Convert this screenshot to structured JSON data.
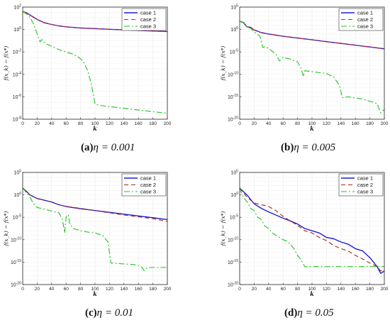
{
  "chart_data": [
    {
      "type": "line",
      "panel": "a",
      "caption": {
        "letter": "(a)",
        "text": "η = 0.001"
      },
      "xlabel": "k",
      "ylabel": "f(x_k) − f(x*)",
      "xlim": [
        0,
        200
      ],
      "xticks": [
        0,
        20,
        40,
        60,
        80,
        100,
        120,
        140,
        160,
        180,
        200
      ],
      "yscale": "log",
      "ylim_exp": [
        -8,
        2
      ],
      "yticks": [
        "10^2",
        "10^0",
        "10^-2",
        "10^-4",
        "10^-6",
        "10^-8"
      ],
      "ytick_exps": [
        2,
        0,
        -2,
        -4,
        -6,
        -8
      ],
      "grid": true,
      "legend": "top-right",
      "series": [
        {
          "name": "case 1",
          "color": "#1f1fd6",
          "dash": "solid",
          "x": [
            0,
            5,
            10,
            20,
            30,
            40,
            50,
            60,
            80,
            100,
            120,
            140,
            160,
            180,
            200
          ],
          "y_exp": [
            1.6,
            1.5,
            1.3,
            0.9,
            0.6,
            0.45,
            0.32,
            0.24,
            0.14,
            0.08,
            0.02,
            -0.03,
            -0.08,
            -0.13,
            -0.18
          ]
        },
        {
          "name": "case 2",
          "color": "#d81e1e",
          "dash": "6,4",
          "x": [
            0,
            5,
            10,
            20,
            30,
            40,
            50,
            60,
            80,
            100,
            120,
            140,
            160,
            180,
            200
          ],
          "y_exp": [
            1.6,
            1.5,
            1.3,
            0.9,
            0.6,
            0.45,
            0.32,
            0.24,
            0.14,
            0.08,
            0.02,
            -0.03,
            -0.08,
            -0.13,
            -0.18
          ]
        },
        {
          "name": "case 3",
          "color": "#22c322",
          "dash": "8,3,2,3",
          "x": [
            0,
            5,
            10,
            15,
            20,
            24,
            26,
            28,
            30,
            40,
            50,
            60,
            70,
            80,
            85,
            90,
            95,
            100,
            102,
            110,
            130,
            150,
            170,
            190,
            200
          ],
          "y_exp": [
            1.6,
            1.4,
            1.1,
            0.5,
            -0.4,
            -1.1,
            -0.9,
            -1.0,
            -1.2,
            -1.5,
            -1.8,
            -2.0,
            -2.2,
            -2.6,
            -3.0,
            -3.7,
            -4.9,
            -6.6,
            -6.7,
            -6.8,
            -6.95,
            -7.1,
            -7.25,
            -7.4,
            -7.45
          ]
        }
      ]
    },
    {
      "type": "line",
      "panel": "b",
      "caption": {
        "letter": "(b)",
        "text": "η = 0.005"
      },
      "xlabel": "k",
      "ylabel": "f(x_k) − f(x*)",
      "xlim": [
        0,
        200
      ],
      "xticks": [
        0,
        20,
        40,
        60,
        80,
        100,
        120,
        140,
        160,
        180,
        200
      ],
      "yscale": "log",
      "ylim_exp": [
        -20,
        5
      ],
      "yticks": [
        "10^5",
        "10^0",
        "10^-5",
        "10^-10",
        "10^-15",
        "10^-20"
      ],
      "ytick_exps": [
        5,
        0,
        -5,
        -10,
        -15,
        -20
      ],
      "grid": true,
      "legend": "top-right",
      "series": [
        {
          "name": "case 1",
          "color": "#1f1fd6",
          "dash": "solid",
          "x": [
            0,
            5,
            10,
            15,
            20,
            30,
            40,
            60,
            80,
            100,
            120,
            140,
            160,
            180,
            200
          ],
          "y_exp": [
            1.8,
            1.6,
            0.6,
            0.5,
            -0.1,
            -0.7,
            -1.0,
            -1.5,
            -1.9,
            -2.3,
            -2.7,
            -3.1,
            -3.5,
            -3.9,
            -4.3
          ]
        },
        {
          "name": "case 2",
          "color": "#d81e1e",
          "dash": "6,4",
          "x": [
            0,
            5,
            10,
            15,
            20,
            30,
            40,
            60,
            80,
            100,
            120,
            140,
            160,
            180,
            200
          ],
          "y_exp": [
            1.8,
            1.6,
            0.6,
            0.5,
            -0.1,
            -0.7,
            -1.0,
            -1.5,
            -1.9,
            -2.3,
            -2.7,
            -3.1,
            -3.5,
            -3.9,
            -4.3
          ]
        },
        {
          "name": "case 3",
          "color": "#22c322",
          "dash": "8,3,2,3",
          "x": [
            0,
            5,
            10,
            15,
            20,
            28,
            32,
            35,
            40,
            50,
            55,
            60,
            70,
            80,
            85,
            88,
            90,
            100,
            120,
            130,
            138,
            142,
            150,
            170,
            190,
            195,
            200
          ],
          "y_exp": [
            1.8,
            1.5,
            0.5,
            0.3,
            -0.5,
            -1.5,
            -4.0,
            -3.8,
            -4.2,
            -5.5,
            -7.0,
            -6.2,
            -6.6,
            -7.2,
            -8.6,
            -10.5,
            -9.2,
            -9.4,
            -9.8,
            -10.6,
            -12.5,
            -15.2,
            -15.0,
            -15.5,
            -16.5,
            -18.6,
            -17.8
          ]
        }
      ]
    },
    {
      "type": "line",
      "panel": "c",
      "caption": {
        "letter": "(c)",
        "text": "η = 0.01"
      },
      "xlabel": "k",
      "ylabel": "f(x_k) − f(x*)",
      "xlim": [
        0,
        200
      ],
      "xticks": [
        0,
        20,
        40,
        60,
        80,
        100,
        120,
        140,
        160,
        180,
        200
      ],
      "yscale": "log",
      "ylim_exp": [
        -20,
        5
      ],
      "yticks": [
        "10^5",
        "10^0",
        "10^-5",
        "10^-10",
        "10^-15",
        "10^-20"
      ],
      "ytick_exps": [
        5,
        0,
        -5,
        -10,
        -15,
        -20
      ],
      "grid": true,
      "legend": "top-right",
      "series": [
        {
          "name": "case 1",
          "color": "#1f1fd6",
          "dash": "solid",
          "x": [
            0,
            5,
            10,
            20,
            30,
            40,
            50,
            60,
            80,
            100,
            120,
            140,
            160,
            180,
            200
          ],
          "y_exp": [
            1.5,
            0.8,
            0.0,
            -0.8,
            -1.2,
            -1.6,
            -2.2,
            -2.6,
            -3.1,
            -3.5,
            -3.9,
            -4.3,
            -4.7,
            -5.1,
            -5.5
          ]
        },
        {
          "name": "case 2",
          "color": "#a8241a",
          "dash": "6,4",
          "x": [
            0,
            5,
            10,
            20,
            30,
            40,
            50,
            60,
            80,
            100,
            120,
            140,
            160,
            180,
            200
          ],
          "y_exp": [
            1.5,
            0.8,
            0.0,
            -0.8,
            -1.2,
            -1.6,
            -2.2,
            -2.6,
            -3.0,
            -3.5,
            -4.0,
            -4.5,
            -4.9,
            -5.3,
            -5.9
          ]
        },
        {
          "name": "case 3",
          "color": "#22c322",
          "dash": "8,3,2,3",
          "x": [
            0,
            5,
            10,
            15,
            20,
            30,
            40,
            50,
            55,
            58,
            60,
            63,
            65,
            70,
            80,
            90,
            100,
            110,
            118,
            122,
            130,
            150,
            160,
            165,
            168,
            172,
            180,
            200
          ],
          "y_exp": [
            1.5,
            0.5,
            -0.5,
            -2.0,
            -2.8,
            -3.2,
            -3.6,
            -4.0,
            -5.5,
            -8.5,
            -5.0,
            -4.4,
            -6.5,
            -7.5,
            -8.0,
            -8.3,
            -8.5,
            -9.0,
            -10.5,
            -15.2,
            -15.3,
            -15.5,
            -15.7,
            -16.2,
            -16.9,
            -16.2,
            -16.2,
            -16.2
          ]
        }
      ]
    },
    {
      "type": "line",
      "panel": "d",
      "caption": {
        "letter": "(d)",
        "text": "η = 0.05"
      },
      "xlabel": "k",
      "ylabel": "f(x_k) − f(x*)",
      "xlim": [
        0,
        200
      ],
      "xticks": [
        0,
        20,
        40,
        60,
        80,
        100,
        120,
        140,
        160,
        180,
        200
      ],
      "yscale": "log",
      "ylim_exp": [
        -20,
        5
      ],
      "yticks": [
        "10^5",
        "10^0",
        "10^-5",
        "10^-10",
        "10^-15",
        "10^-20"
      ],
      "ytick_exps": [
        5,
        0,
        -5,
        -10,
        -15,
        -20
      ],
      "grid": true,
      "legend": "top-right",
      "series": [
        {
          "name": "case 1",
          "color": "#1f1fd6",
          "dash": "solid",
          "x": [
            0,
            10,
            20,
            30,
            40,
            50,
            60,
            70,
            80,
            90,
            100,
            110,
            120,
            130,
            140,
            150,
            160,
            170,
            180,
            190,
            195,
            200
          ],
          "y_exp": [
            1.5,
            0.0,
            -2.0,
            -3.0,
            -3.8,
            -4.5,
            -5.2,
            -5.8,
            -6.5,
            -7.5,
            -8.0,
            -8.5,
            -9.5,
            -9.8,
            -10.5,
            -11.0,
            -12.0,
            -12.5,
            -14.0,
            -16.0,
            -17.5,
            -17.0
          ]
        },
        {
          "name": "case 2",
          "color": "#a8241a",
          "dash": "6,4",
          "x": [
            0,
            10,
            20,
            30,
            40,
            50,
            60,
            70,
            80,
            90,
            100,
            110,
            120,
            130,
            140,
            150,
            160,
            170,
            180,
            190,
            195,
            200
          ],
          "y_exp": [
            1.5,
            -0.5,
            -1.8,
            -2.2,
            -2.6,
            -3.5,
            -4.8,
            -5.8,
            -6.8,
            -8.0,
            -8.5,
            -9.5,
            -10.2,
            -11.3,
            -12.0,
            -12.5,
            -13.5,
            -14.3,
            -15.2,
            -16.0,
            -17.0,
            -16.5
          ]
        },
        {
          "name": "case 3",
          "color": "#22c322",
          "dash": "8,3,2,3",
          "x": [
            0,
            5,
            10,
            15,
            20,
            25,
            30,
            35,
            40,
            45,
            50,
            55,
            60,
            65,
            70,
            75,
            80,
            85,
            90,
            100,
            120,
            140,
            160,
            180,
            200
          ],
          "y_exp": [
            1.5,
            -0.5,
            -1.5,
            -3.0,
            -3.5,
            -5.0,
            -5.5,
            -7.0,
            -7.5,
            -8.5,
            -9.0,
            -9.5,
            -10.0,
            -10.3,
            -11.0,
            -12.0,
            -13.5,
            -14.5,
            -16.0,
            -16.0,
            -16.0,
            -16.0,
            -16.0,
            -16.0,
            -16.0
          ]
        }
      ]
    }
  ]
}
